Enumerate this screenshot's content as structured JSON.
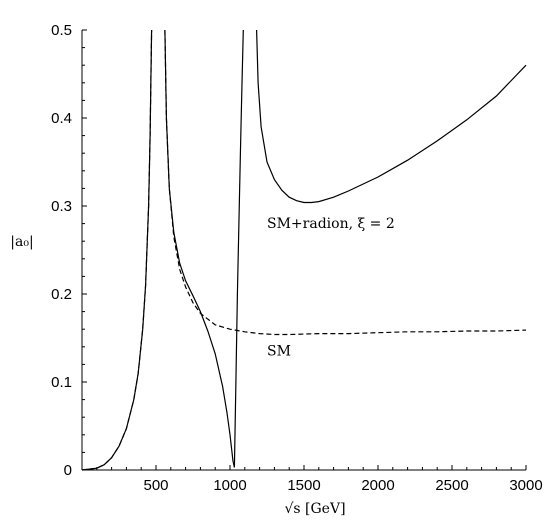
{
  "chart_data": {
    "type": "line",
    "xlabel": "√s [GeV]",
    "ylabel": "|a₀|",
    "xlim": [
      0,
      3000
    ],
    "ylim": [
      0,
      0.5
    ],
    "x_ticks": [
      500,
      1000,
      1500,
      2000,
      2500,
      3000
    ],
    "y_ticks": [
      0,
      0.1,
      0.2,
      0.3,
      0.4,
      0.5
    ],
    "x_tick_labels": [
      "500",
      "1000",
      "1500",
      "2000",
      "2500",
      "3000"
    ],
    "y_tick_labels": [
      "0",
      "0.1",
      "0.2",
      "0.3",
      "0.4",
      "0.5"
    ],
    "grid": false,
    "series": [
      {
        "name": "SM+radion, ξ = 2",
        "style": "solid",
        "color": "#000000",
        "segments": [
          {
            "x": [
              0,
              100,
              150,
              200,
              250,
              300,
              350,
              380,
              410,
              430,
              450,
              460,
              470
            ],
            "y": [
              0,
              0.002,
              0.006,
              0.014,
              0.027,
              0.047,
              0.08,
              0.11,
              0.16,
              0.21,
              0.3,
              0.38,
              0.5
            ]
          },
          {
            "x": [
              560,
              570,
              590,
              620,
              660,
              700,
              750,
              800,
              850,
              900,
              950,
              980,
              1000,
              1010,
              1020,
              1030
            ],
            "y": [
              0.5,
              0.4,
              0.32,
              0.27,
              0.235,
              0.215,
              0.198,
              0.18,
              0.158,
              0.132,
              0.095,
              0.065,
              0.04,
              0.025,
              0.01,
              0.003
            ]
          },
          {
            "x": [
              1030,
              1040,
              1050,
              1060,
              1070,
              1080,
              1090
            ],
            "y": [
              0.003,
              0.1,
              0.2,
              0.28,
              0.36,
              0.43,
              0.5
            ]
          },
          {
            "x": [
              1180,
              1190,
              1210,
              1250,
              1300,
              1350,
              1400,
              1450,
              1500,
              1550,
              1600,
              1700,
              1800,
              2000,
              2200,
              2400,
              2600,
              2800,
              3000
            ],
            "y": [
              0.5,
              0.44,
              0.39,
              0.35,
              0.33,
              0.318,
              0.31,
              0.306,
              0.304,
              0.304,
              0.305,
              0.31,
              0.317,
              0.333,
              0.352,
              0.374,
              0.398,
              0.425,
              0.46
            ]
          }
        ]
      },
      {
        "name": "SM",
        "style": "dashed",
        "color": "#000000",
        "segments": [
          {
            "x": [
              0,
              100,
              150,
              200,
              250,
              300,
              350,
              380,
              410,
              430,
              450,
              460,
              470
            ],
            "y": [
              0,
              0.002,
              0.006,
              0.014,
              0.027,
              0.047,
              0.08,
              0.11,
              0.16,
              0.21,
              0.3,
              0.38,
              0.5
            ]
          },
          {
            "x": [
              560,
              570,
              590,
              620,
              660,
              700,
              750,
              800,
              900,
              1000,
              1100,
              1200,
              1300,
              1400,
              1600,
              1800,
              2000,
              2200,
              2400,
              2600,
              2800,
              3000
            ],
            "y": [
              0.5,
              0.4,
              0.32,
              0.265,
              0.228,
              0.208,
              0.19,
              0.178,
              0.165,
              0.16,
              0.157,
              0.155,
              0.154,
              0.154,
              0.155,
              0.155,
              0.156,
              0.157,
              0.157,
              0.158,
              0.158,
              0.159
            ]
          }
        ]
      }
    ],
    "annotations": [
      {
        "text": "SM+radion, ξ = 2",
        "x": 1250,
        "y": 0.275
      },
      {
        "text": "SM",
        "x": 1250,
        "y": 0.13
      }
    ]
  }
}
